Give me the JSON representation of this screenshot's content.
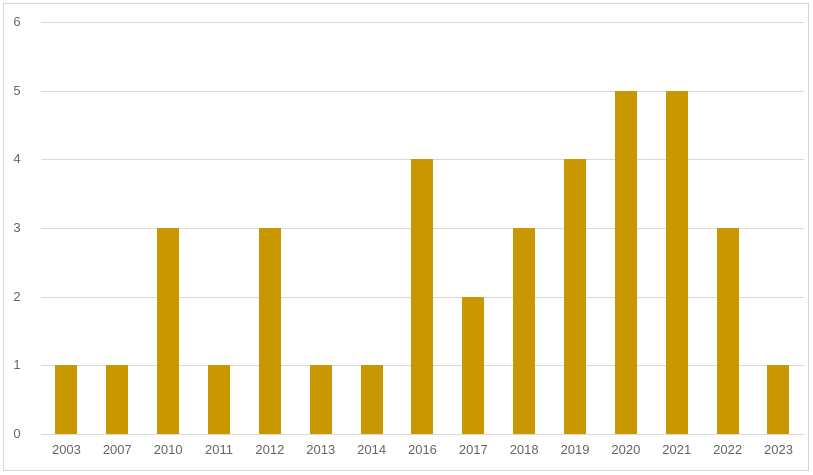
{
  "chart_data": {
    "type": "bar",
    "title": "",
    "xlabel": "",
    "ylabel": "",
    "categories": [
      "2003",
      "2007",
      "2010",
      "2011",
      "2012",
      "2013",
      "2014",
      "2016",
      "2017",
      "2018",
      "2019",
      "2020",
      "2021",
      "2022",
      "2023"
    ],
    "values": [
      1,
      1,
      3,
      1,
      3,
      1,
      1,
      4,
      2,
      3,
      4,
      5,
      5,
      3,
      1
    ],
    "ylim": [
      0,
      6
    ],
    "yticks": [
      0,
      1,
      2,
      3,
      4,
      5,
      6
    ],
    "grid": true,
    "legend": "none",
    "bar_color": "#C99700",
    "gridline_color": "#D9D9D9",
    "axis_label_color": "#666666",
    "frame_border_color": "#D5D5D5",
    "background_color": "#FFFFFF"
  }
}
